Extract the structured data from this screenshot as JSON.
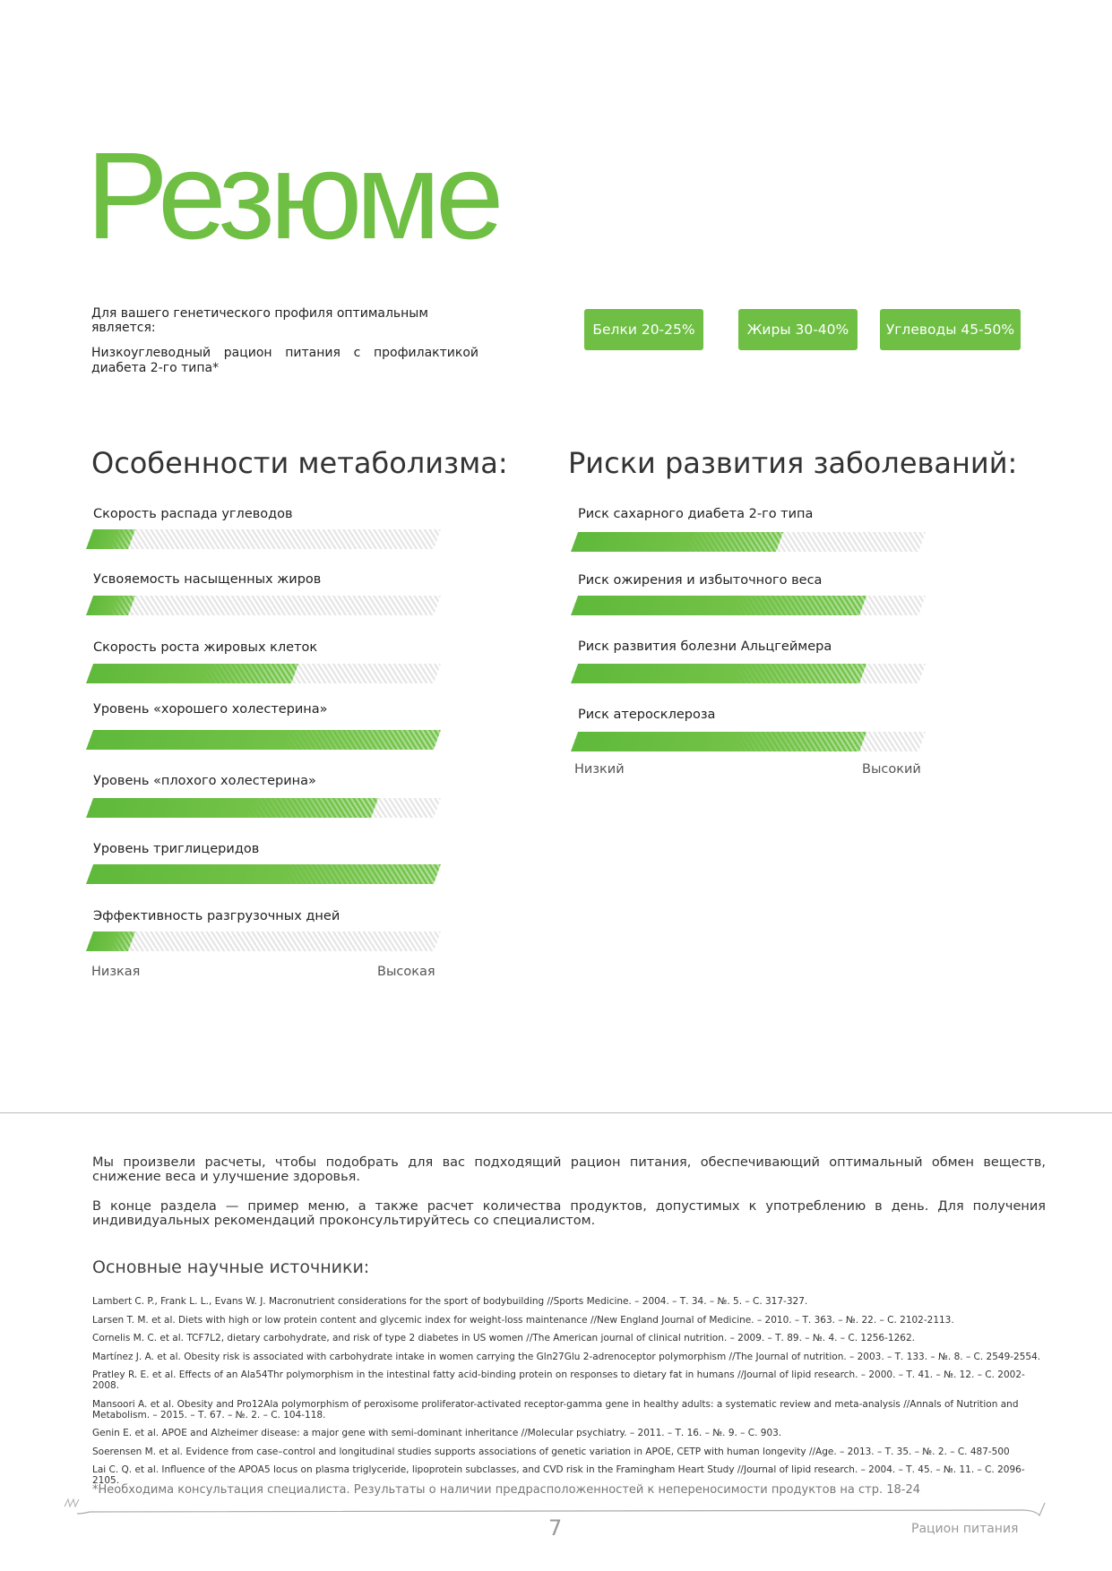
{
  "title": "Резюме",
  "intro": {
    "lead": "Для вашего генетического профиля оптимальным является:",
    "diet": "Низкоуглеводный рацион питания с профилактикой диабета 2-го типа*"
  },
  "macros": [
    {
      "label": "Белки 20-25%"
    },
    {
      "label": "Жиры  30-40%"
    },
    {
      "label": "Углеводы  45-50%"
    }
  ],
  "colors": {
    "accent": "#6fbf44",
    "stripe": "#e6e6e6"
  },
  "metabolism": {
    "heading": "Особенности метаболизма:",
    "items": [
      {
        "label": "Скорость распада углеводов",
        "level": 0.12
      },
      {
        "label": "Усвояемость насыщенных жиров",
        "level": 0.12
      },
      {
        "label": "Скорость роста жировых клеток",
        "level": 0.59
      },
      {
        "label": "Уровень «хорошего холестерина»",
        "level": 1.0
      },
      {
        "label": "Уровень «плохого холестерина»",
        "level": 0.82
      },
      {
        "label": "Уровень триглицеридов",
        "level": 1.0
      },
      {
        "label": "Эффективность разгрузочных дней",
        "level": 0.12
      }
    ],
    "low": "Низкая",
    "high": "Высокая"
  },
  "risks": {
    "heading": "Риски развития заболеваний:",
    "items": [
      {
        "label": "Риск сахарного диабета 2-го типа",
        "level": 0.59
      },
      {
        "label": "Риск ожирения и избыточного веса",
        "level": 0.83
      },
      {
        "label": "Риск развития болезни Альцгеймера",
        "level": 0.83
      },
      {
        "label": "Риск атеросклероза",
        "level": 0.83
      }
    ],
    "low": "Низкий",
    "high": "Высокий"
  },
  "paragraphs": [
    "Мы произвели расчеты, чтобы подобрать для вас подходящий рацион питания, обеспечивающий оптимальный обмен веществ, снижение веса и улучшение здоровья.",
    "В конце раздела — пример меню, а также расчет количества продуктов, допустимых к употреблению в день. Для получения индивидуальных рекомендаций проконсультируйтесь со специалистом."
  ],
  "sources_heading": "Основные научные источники:",
  "references": [
    "Lambert C. P., Frank L. L., Evans W. J. Macronutrient considerations for the sport of bodybuilding //Sports Medicine. – 2004. – Т. 34. – №. 5. – С. 317-327.",
    "Larsen T. M. et al. Diets with high or low protein content and glycemic index for weight-loss maintenance //New England Journal of Medicine. – 2010. – Т. 363. – №. 22. – С. 2102-2113.",
    "Cornelis M. C. et al. TCF7L2, dietary carbohydrate, and risk of type 2 diabetes in US women //The American journal of clinical nutrition. – 2009. – Т. 89. – №. 4. – С. 1256-1262.",
    "Martínez J. A. et al. Obesity risk is associated with carbohydrate intake in women carrying the Gln27Glu  2-adrenoceptor polymorphism //The Journal of nutrition. – 2003. – Т. 133. – №. 8. – С. 2549-2554.",
    "Pratley R. E. et al. Effects of an Ala54Thr polymorphism in the intestinal fatty acid-binding protein on responses to dietary fat in humans //Journal of lipid research. – 2000. – Т. 41. – №. 12. – С. 2002-2008.",
    "Mansoori A. et al. Obesity and Pro12Ala polymorphism of peroxisome proliferator-activated receptor-gamma gene in healthy adults: a systematic review and meta-analysis //Annals of Nutrition and Metabolism. – 2015. – Т. 67. – №. 2. – С. 104-118.",
    "Genin E. et al. APOE and Alzheimer disease: a major gene with semi-dominant inheritance //Molecular psychiatry. – 2011. – Т. 16. – №. 9. – С. 903.",
    "Soerensen M. et al. Evidence from case–control and longitudinal studies supports associations of genetic variation in APOE, CETP with human longevity //Age. – 2013. – Т. 35. – №. 2. – С. 487-500",
    "Lai C. Q. et al. Influence of the APOA5 locus on plasma triglyceride, lipoprotein subclasses, and CVD risk in the Framingham Heart Study //Journal of lipid research. – 2004. – Т. 45. – №. 11. – С. 2096-2105."
  ],
  "footnote": "*Необходима консультация специалиста. Результаты о наличии предрасположенностей к непереносимости продуктов на стр. 18-24",
  "footer": {
    "page": "7",
    "section": "Рацион питания"
  }
}
